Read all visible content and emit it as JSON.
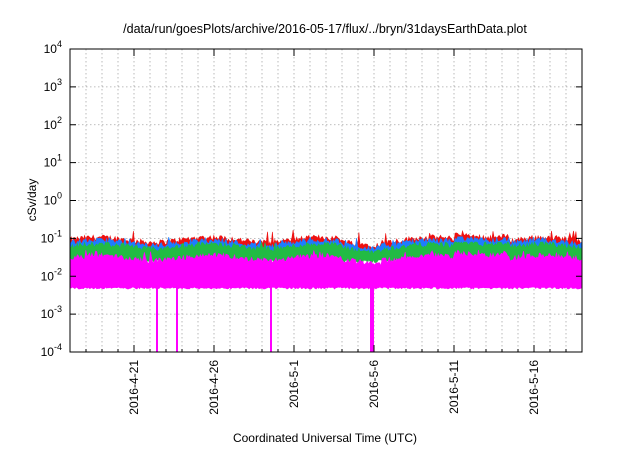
{
  "chart_data": {
    "type": "area",
    "title": "/data/run/goesPlots/archive/2016-05-17/flux/../bryn/31daysEarthData.plot",
    "xlabel": "Coordinated Universal Time (UTC)",
    "ylabel": "cSv/day",
    "yscale": "log",
    "ylim": [
      0.0001,
      10000
    ],
    "xlim": [
      "2016-04-17",
      "2016-05-19"
    ],
    "grid": true,
    "y_ticks": [
      {
        "value": 0.0001,
        "base": "10",
        "exp": "-4"
      },
      {
        "value": 0.001,
        "base": "10",
        "exp": "-3"
      },
      {
        "value": 0.01,
        "base": "10",
        "exp": "-2"
      },
      {
        "value": 0.1,
        "base": "10",
        "exp": "-1"
      },
      {
        "value": 1,
        "base": "10",
        "exp": "0"
      },
      {
        "value": 10,
        "base": "10",
        "exp": "1"
      },
      {
        "value": 100,
        "base": "10",
        "exp": "2"
      },
      {
        "value": 1000,
        "base": "10",
        "exp": "3"
      },
      {
        "value": 10000,
        "base": "10",
        "exp": "4"
      }
    ],
    "x_ticks": [
      {
        "date": "2016-04-21",
        "label": "2016-4-21"
      },
      {
        "date": "2016-04-26",
        "label": "2016-4-26"
      },
      {
        "date": "2016-05-01",
        "label": "2016-5-1"
      },
      {
        "date": "2016-05-06",
        "label": "2016-5-6"
      },
      {
        "date": "2016-05-11",
        "label": "2016-5-11"
      },
      {
        "date": "2016-05-16",
        "label": "2016-5-16"
      }
    ],
    "series": [
      {
        "color": "#ee1111",
        "typical_low": 0.045,
        "typical_high": 0.09,
        "peak": 0.17
      },
      {
        "color": "#1e7cff",
        "typical_low": 0.03,
        "typical_high": 0.075,
        "peak": 0.11
      },
      {
        "color": "#22bb44",
        "typical_low": 0.025,
        "typical_high": 0.06,
        "peak": 0.08
      },
      {
        "color": "#ff00ff",
        "typical_low": 0.005,
        "typical_high": 0.03,
        "peak": 0.05
      }
    ],
    "dropouts": [
      {
        "series_color": "#ff00ff",
        "start": "2016-04-22 09:00",
        "end": "2016-04-22 12:00",
        "min": 0.0001
      },
      {
        "series_color": "#ff00ff",
        "start": "2016-04-23 15:00",
        "end": "2016-04-23 18:00",
        "min": 0.0001
      },
      {
        "series_color": "#ff00ff",
        "start": "2016-04-29 12:00",
        "end": "2016-04-29 15:00",
        "min": 0.0001
      },
      {
        "series_color": "#ff00ff",
        "start": "2016-05-05 18:00",
        "end": "2016-05-06 00:00",
        "min": 0.0001
      }
    ]
  }
}
